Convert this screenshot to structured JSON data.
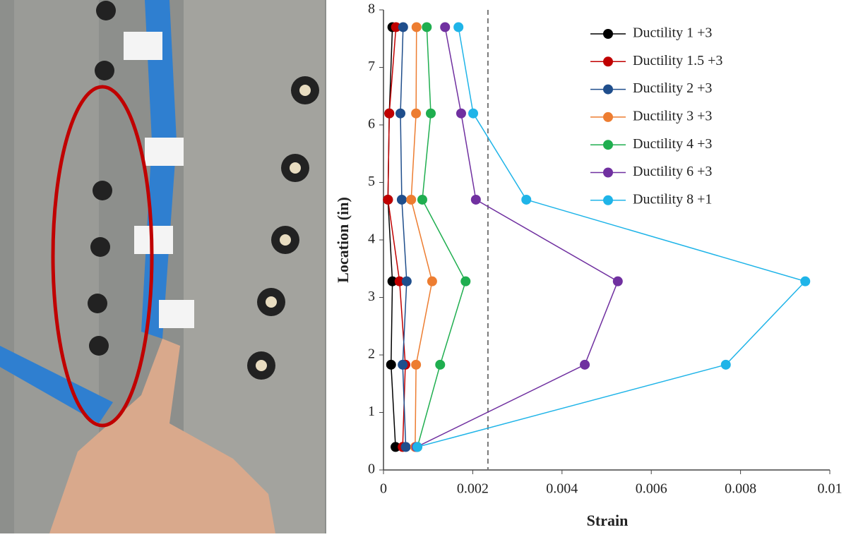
{
  "chart_data": {
    "type": "line",
    "xlabel": "Strain",
    "ylabel": "Location (in)",
    "y": [
      0.4,
      1.83,
      3.28,
      4.7,
      6.2,
      7.7
    ],
    "series": [
      {
        "name": "Ductility 1 +3",
        "color": "#000000",
        "x": [
          0.00027,
          0.00017,
          0.0002,
          0.0001,
          0.00013,
          0.0002
        ]
      },
      {
        "name": "Ductility 1.5 +3",
        "color": "#c00000",
        "x": [
          0.00043,
          0.00049,
          0.00036,
          0.0001,
          0.00013,
          0.00028
        ]
      },
      {
        "name": "Ductility 2 +3",
        "color": "#1f4e8c",
        "x": [
          0.0005,
          0.00043,
          0.00052,
          0.00041,
          0.00038,
          0.00044
        ]
      },
      {
        "name": "Ductility 3 +3",
        "color": "#ed7d31",
        "x": [
          0.00071,
          0.00073,
          0.00109,
          0.00062,
          0.00073,
          0.00074
        ]
      },
      {
        "name": "Ductility 4 +3",
        "color": "#1fae4f",
        "x": [
          0.00076,
          0.00127,
          0.00184,
          0.00087,
          0.00106,
          0.00097
        ]
      },
      {
        "name": "Ductility 6 +3",
        "color": "#7030a0",
        "x": [
          0.00074,
          0.00451,
          0.00525,
          0.00207,
          0.00174,
          0.00138
        ]
      },
      {
        "name": "Ductility 8 +1",
        "color": "#1fb4e8",
        "x": [
          0.00076,
          0.00767,
          0.00945,
          0.0032,
          0.00201,
          0.00168
        ]
      }
    ],
    "xlim": [
      0,
      0.01
    ],
    "xticks": [
      0,
      0.002,
      0.004,
      0.006,
      0.008,
      0.01
    ],
    "ylim": [
      0,
      8
    ],
    "yticks": [
      0,
      1,
      2,
      3,
      4,
      5,
      6,
      7,
      8
    ],
    "vline": 0.00234,
    "legend": "upper-right",
    "grid": false
  }
}
